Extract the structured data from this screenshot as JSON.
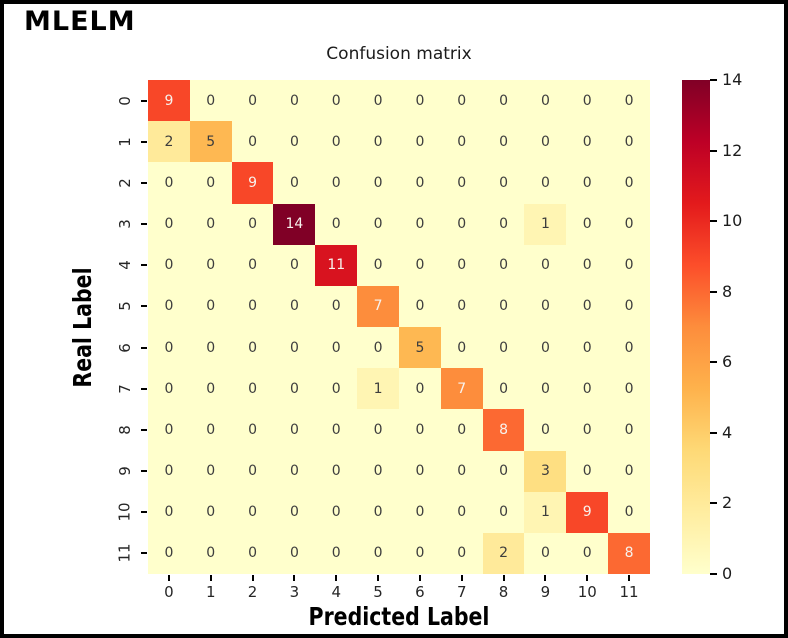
{
  "figure": {
    "model_label": "MLELM",
    "background_color": "#ffffff",
    "frame_border_color": "#000000"
  },
  "chart_data": {
    "type": "heatmap",
    "title": "Confusion matrix",
    "xlabel": "Predicted Label",
    "ylabel": "Real Label",
    "x_tick_labels": [
      "0",
      "1",
      "2",
      "3",
      "4",
      "5",
      "6",
      "7",
      "8",
      "9",
      "10",
      "11"
    ],
    "y_tick_labels": [
      "0",
      "1",
      "2",
      "3",
      "4",
      "5",
      "6",
      "7",
      "8",
      "9",
      "10",
      "11"
    ],
    "matrix": [
      [
        9,
        0,
        0,
        0,
        0,
        0,
        0,
        0,
        0,
        0,
        0,
        0
      ],
      [
        2,
        5,
        0,
        0,
        0,
        0,
        0,
        0,
        0,
        0,
        0,
        0
      ],
      [
        0,
        0,
        9,
        0,
        0,
        0,
        0,
        0,
        0,
        0,
        0,
        0
      ],
      [
        0,
        0,
        0,
        14,
        0,
        0,
        0,
        0,
        0,
        1,
        0,
        0
      ],
      [
        0,
        0,
        0,
        0,
        11,
        0,
        0,
        0,
        0,
        0,
        0,
        0
      ],
      [
        0,
        0,
        0,
        0,
        0,
        7,
        0,
        0,
        0,
        0,
        0,
        0
      ],
      [
        0,
        0,
        0,
        0,
        0,
        0,
        5,
        0,
        0,
        0,
        0,
        0
      ],
      [
        0,
        0,
        0,
        0,
        0,
        1,
        0,
        7,
        0,
        0,
        0,
        0
      ],
      [
        0,
        0,
        0,
        0,
        0,
        0,
        0,
        0,
        8,
        0,
        0,
        0
      ],
      [
        0,
        0,
        0,
        0,
        0,
        0,
        0,
        0,
        0,
        3,
        0,
        0
      ],
      [
        0,
        0,
        0,
        0,
        0,
        0,
        0,
        0,
        0,
        1,
        9,
        0
      ],
      [
        0,
        0,
        0,
        0,
        0,
        0,
        0,
        0,
        2,
        0,
        0,
        8
      ]
    ],
    "vmin": 0,
    "vmax": 14,
    "colorbar": {
      "position": "right",
      "ticks": [
        0,
        2,
        4,
        6,
        8,
        10,
        12,
        14
      ]
    },
    "colormap": {
      "name": "YlOrRd",
      "stops": [
        "#ffffcc",
        "#ffeda0",
        "#fed976",
        "#feb24c",
        "#fd8d3c",
        "#fc4e2a",
        "#e31a1c",
        "#bd0026",
        "#800026"
      ]
    },
    "cell_text_colors": {
      "dark": "#3d3d3d",
      "light": "#f7f2ed",
      "light_threshold": 7
    },
    "grid": false,
    "legend": false
  }
}
